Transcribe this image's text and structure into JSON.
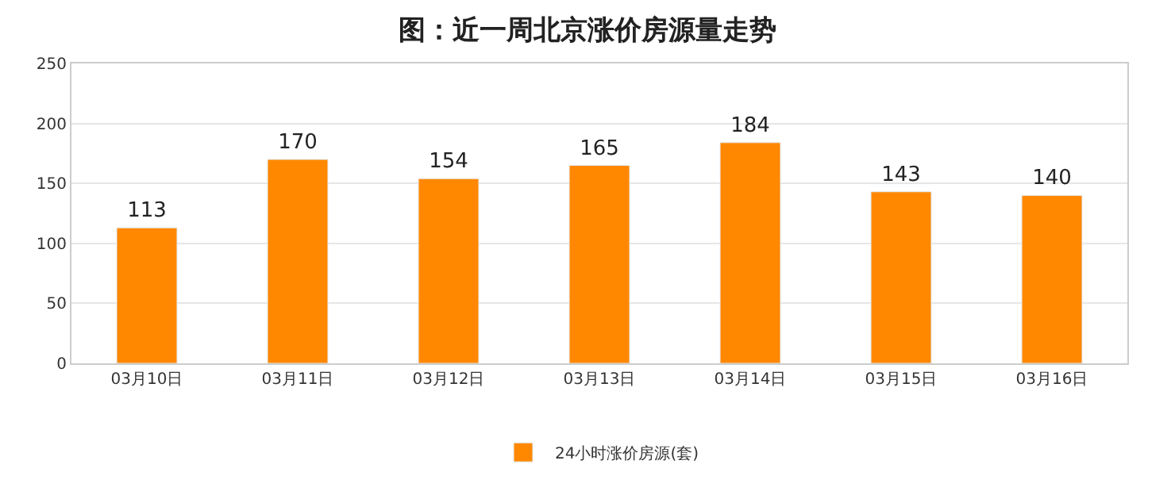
{
  "chart_data": {
    "type": "bar",
    "title": "图：近一周北京涨价房源量走势",
    "categories": [
      "03月10日",
      "03月11日",
      "03月12日",
      "03月13日",
      "03月14日",
      "03月15日",
      "03月16日"
    ],
    "series": [
      {
        "name": "24小时涨价房源(套)",
        "color": "#ff8800",
        "values": [
          113,
          170,
          154,
          165,
          184,
          143,
          140
        ]
      }
    ],
    "ylim": [
      0,
      250
    ],
    "yticks": [
      0,
      50,
      100,
      150,
      200,
      250
    ],
    "grid": "y",
    "legend": "bottom",
    "data_labels": true
  }
}
